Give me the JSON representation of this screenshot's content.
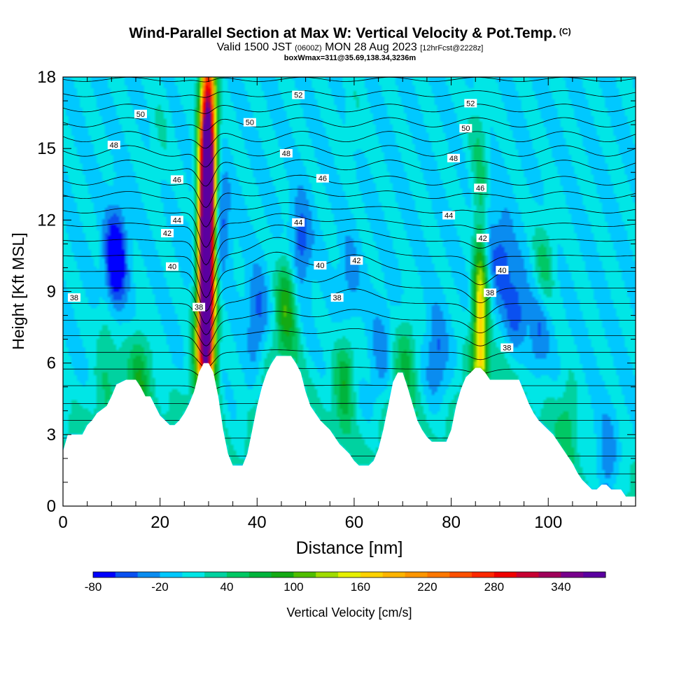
{
  "header": {
    "title": "Wind-Parallel Section at Max W: Vertical Velocity & Pot.Temp.",
    "copyright_mark": "(C)",
    "valid_prefix": "Valid 1500 JST",
    "valid_utc": "(0600Z)",
    "valid_date": "MON 28 Aug 2023",
    "forecast": "[12hrFcst@2228z]",
    "box_info": "boxWmax=311@35.69,138.34,3236m"
  },
  "colorbar": {
    "title": "Vertical Velocity [cm/s]",
    "min": -80,
    "step": 20,
    "tick_labels": [
      "-80",
      "-20",
      "40",
      "100",
      "160",
      "220",
      "280",
      "340"
    ],
    "tick_values": [
      -80,
      -20,
      40,
      100,
      160,
      220,
      280,
      340
    ],
    "colors": [
      "#0000ff",
      "#0a50f0",
      "#0a8cf0",
      "#00c8ff",
      "#00e6e6",
      "#00d2a0",
      "#00c864",
      "#00b43c",
      "#14aa14",
      "#50be00",
      "#a0dc00",
      "#e6f000",
      "#ffd200",
      "#ffb400",
      "#ff9600",
      "#ff7800",
      "#ff5000",
      "#ff2800",
      "#f00000",
      "#c80032",
      "#a0005a",
      "#78008c",
      "#5a00a0"
    ]
  },
  "chart_data": {
    "type": "heatmap",
    "xlabel": "Distance [nm]",
    "ylabel": "Height [Kft MSL]",
    "xlim": [
      0,
      118
    ],
    "ylim": [
      0,
      18
    ],
    "x_ticks": [
      "0",
      "20",
      "40",
      "60",
      "80",
      "100"
    ],
    "x_tick_values": [
      0,
      20,
      40,
      60,
      80,
      100
    ],
    "y_ticks": [
      "0",
      "3",
      "6",
      "9",
      "12",
      "15",
      "18"
    ],
    "y_tick_values": [
      0,
      3,
      6,
      9,
      12,
      15,
      18
    ],
    "background_w": 0,
    "terrain_kft": [
      [
        0,
        2.3
      ],
      [
        1,
        3
      ],
      [
        4,
        3
      ],
      [
        5,
        3.4
      ],
      [
        6,
        3.6
      ],
      [
        7,
        3.9
      ],
      [
        9,
        4.2
      ],
      [
        10,
        4.6
      ],
      [
        11,
        5.1
      ],
      [
        13,
        5.3
      ],
      [
        15,
        5.3
      ],
      [
        16,
        5
      ],
      [
        17,
        4.6
      ],
      [
        18,
        4.6
      ],
      [
        19,
        4.2
      ],
      [
        20,
        3.8
      ],
      [
        21,
        3.6
      ],
      [
        22,
        3.4
      ],
      [
        23,
        3.4
      ],
      [
        24,
        3.6
      ],
      [
        25,
        3.9
      ],
      [
        26,
        4.3
      ],
      [
        27,
        4.8
      ],
      [
        28,
        5.6
      ],
      [
        29,
        6
      ],
      [
        30,
        6
      ],
      [
        31,
        5.6
      ],
      [
        32,
        4.6
      ],
      [
        33,
        3.2
      ],
      [
        34,
        2.2
      ],
      [
        35,
        1.7
      ],
      [
        37,
        1.7
      ],
      [
        38,
        2.2
      ],
      [
        39,
        3.2
      ],
      [
        40,
        4.2
      ],
      [
        41,
        5
      ],
      [
        42,
        5.6
      ],
      [
        43,
        6
      ],
      [
        44,
        6.3
      ],
      [
        47,
        6.3
      ],
      [
        48,
        6
      ],
      [
        49,
        5.6
      ],
      [
        50,
        4.8
      ],
      [
        51,
        4.2
      ],
      [
        52,
        3.9
      ],
      [
        53,
        3.6
      ],
      [
        54,
        3.4
      ],
      [
        55,
        3.2
      ],
      [
        56,
        2.9
      ],
      [
        57,
        2.6
      ],
      [
        58,
        2.4
      ],
      [
        59,
        2.2
      ],
      [
        60,
        1.9
      ],
      [
        61,
        1.7
      ],
      [
        63,
        1.7
      ],
      [
        64,
        1.9
      ],
      [
        65,
        2.4
      ],
      [
        66,
        3.2
      ],
      [
        67,
        4.2
      ],
      [
        68,
        5.2
      ],
      [
        69,
        5.6
      ],
      [
        70,
        5.6
      ],
      [
        71,
        5
      ],
      [
        72,
        4.3
      ],
      [
        73,
        3.6
      ],
      [
        74,
        3.2
      ],
      [
        75,
        2.9
      ],
      [
        76,
        2.7
      ],
      [
        79,
        2.7
      ],
      [
        80,
        3.2
      ],
      [
        81,
        4.2
      ],
      [
        82,
        4.9
      ],
      [
        83,
        5.4
      ],
      [
        84,
        5.6
      ],
      [
        85,
        5.8
      ],
      [
        86,
        5.8
      ],
      [
        87,
        5.6
      ],
      [
        88,
        5.3
      ],
      [
        94,
        5.3
      ],
      [
        95,
        4.8
      ],
      [
        96,
        4.3
      ],
      [
        97,
        3.9
      ],
      [
        98,
        3.6
      ],
      [
        99,
        3.4
      ],
      [
        100,
        3.2
      ],
      [
        101,
        3
      ],
      [
        102,
        2.7
      ],
      [
        103,
        2.4
      ],
      [
        104,
        2.1
      ],
      [
        105,
        1.8
      ],
      [
        106,
        1.4
      ],
      [
        107,
        1.1
      ],
      [
        108,
        0.9
      ],
      [
        109,
        0.7
      ],
      [
        110,
        0.7
      ],
      [
        111,
        0.9
      ],
      [
        112,
        0.9
      ],
      [
        113,
        0.7
      ],
      [
        115,
        0.7
      ],
      [
        116,
        0.4
      ],
      [
        118,
        0.4
      ]
    ],
    "w_features": [
      {
        "x": 11,
        "z": 10.6,
        "w": -65
      },
      {
        "x": 10.5,
        "z": 9.8,
        "w": -45
      },
      {
        "x": 9,
        "z": 7,
        "w": 40
      },
      {
        "x": 16,
        "z": 5.6,
        "w": 55
      },
      {
        "x": 29.5,
        "z": 12,
        "w": 300
      },
      {
        "x": 30,
        "z": 15,
        "w": 260
      },
      {
        "x": 29.5,
        "z": 9,
        "w": 220
      },
      {
        "x": 29,
        "z": 7,
        "w": 130
      },
      {
        "x": 32,
        "z": 12,
        "w": -70
      },
      {
        "x": 28,
        "z": 11.5,
        "w": -25
      },
      {
        "x": 40,
        "z": 8,
        "w": -45
      },
      {
        "x": 46,
        "z": 8.5,
        "w": 90
      },
      {
        "x": 49,
        "z": 11,
        "w": -55
      },
      {
        "x": 58,
        "z": 5.3,
        "w": 75
      },
      {
        "x": 59,
        "z": 9.5,
        "w": -30
      },
      {
        "x": 65.5,
        "z": 6.5,
        "w": -30
      },
      {
        "x": 71,
        "z": 6.3,
        "w": 45
      },
      {
        "x": 77,
        "z": 6.3,
        "w": -45
      },
      {
        "x": 86,
        "z": 8,
        "w": 170
      },
      {
        "x": 86.5,
        "z": 11.3,
        "w": -55
      },
      {
        "x": 90.5,
        "z": 10.3,
        "w": -50
      },
      {
        "x": 93.5,
        "z": 8.3,
        "w": -50
      },
      {
        "x": 98,
        "z": 7.5,
        "w": -45
      },
      {
        "x": 99,
        "z": 10,
        "w": 50
      },
      {
        "x": 104,
        "z": 3.7,
        "w": 40
      },
      {
        "x": 112,
        "z": 1.5,
        "w": -55
      },
      {
        "x": 20,
        "z": 15.5,
        "w": 20
      },
      {
        "x": 60,
        "z": 16.5,
        "w": 15
      },
      {
        "x": 85,
        "z": 15.5,
        "w": 20
      }
    ],
    "theta_levels_K": [
      28,
      29,
      30,
      31,
      32,
      33,
      34,
      35,
      36,
      37,
      38,
      39,
      40,
      41,
      42,
      43,
      44,
      45,
      46,
      47,
      48,
      49,
      50,
      51,
      52,
      53,
      54
    ],
    "theta_contour_labels": [
      {
        "x": 2.3,
        "z": 8.75,
        "text": "38"
      },
      {
        "x": 28,
        "z": 8.35,
        "text": "38"
      },
      {
        "x": 56.5,
        "z": 8.75,
        "text": "38"
      },
      {
        "x": 88,
        "z": 8.95,
        "text": "38"
      },
      {
        "x": 91.5,
        "z": 6.65,
        "text": "38"
      },
      {
        "x": 22.5,
        "z": 10.05,
        "text": "40"
      },
      {
        "x": 53,
        "z": 10.1,
        "text": "40"
      },
      {
        "x": 90.5,
        "z": 9.9,
        "text": "40"
      },
      {
        "x": 21.5,
        "z": 11.45,
        "text": "42"
      },
      {
        "x": 60.5,
        "z": 10.3,
        "text": "42"
      },
      {
        "x": 86.5,
        "z": 11.25,
        "text": "42"
      },
      {
        "x": 23.5,
        "z": 12.0,
        "text": "44"
      },
      {
        "x": 48.5,
        "z": 11.9,
        "text": "44"
      },
      {
        "x": 79.5,
        "z": 12.2,
        "text": "44"
      },
      {
        "x": 23.5,
        "z": 13.7,
        "text": "46"
      },
      {
        "x": 53.5,
        "z": 13.75,
        "text": "46"
      },
      {
        "x": 86,
        "z": 13.35,
        "text": "46"
      },
      {
        "x": 10.5,
        "z": 15.15,
        "text": "48"
      },
      {
        "x": 46,
        "z": 14.8,
        "text": "48"
      },
      {
        "x": 80.5,
        "z": 14.6,
        "text": "48"
      },
      {
        "x": 16,
        "z": 16.45,
        "text": "50"
      },
      {
        "x": 38.5,
        "z": 16.1,
        "text": "50"
      },
      {
        "x": 83,
        "z": 15.85,
        "text": "50"
      },
      {
        "x": 48.5,
        "z": 17.25,
        "text": "52"
      },
      {
        "x": 84,
        "z": 16.9,
        "text": "52"
      }
    ]
  }
}
